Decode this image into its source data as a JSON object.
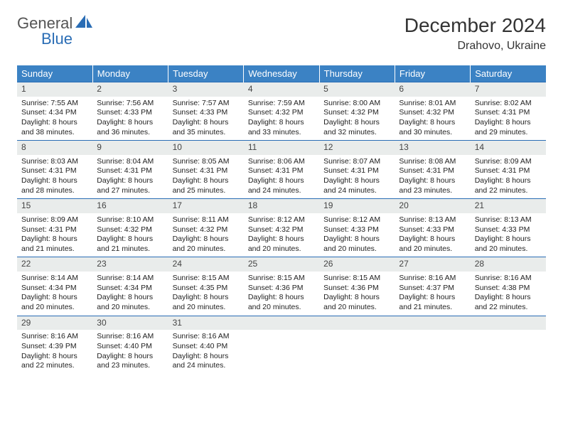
{
  "brand": {
    "general": "General",
    "blue": "Blue"
  },
  "title": "December 2024",
  "location": "Drahovo, Ukraine",
  "colors": {
    "header_bg": "#3b82c4",
    "header_text": "#ffffff",
    "day_num_bg": "#e9eceb",
    "row_border": "#2a6db5",
    "logo_blue": "#2a6db5",
    "logo_gray": "#555555"
  },
  "weekdays": [
    "Sunday",
    "Monday",
    "Tuesday",
    "Wednesday",
    "Thursday",
    "Friday",
    "Saturday"
  ],
  "weeks": [
    [
      {
        "n": "1",
        "sr": "Sunrise: 7:55 AM",
        "ss": "Sunset: 4:34 PM",
        "d1": "Daylight: 8 hours",
        "d2": "and 38 minutes."
      },
      {
        "n": "2",
        "sr": "Sunrise: 7:56 AM",
        "ss": "Sunset: 4:33 PM",
        "d1": "Daylight: 8 hours",
        "d2": "and 36 minutes."
      },
      {
        "n": "3",
        "sr": "Sunrise: 7:57 AM",
        "ss": "Sunset: 4:33 PM",
        "d1": "Daylight: 8 hours",
        "d2": "and 35 minutes."
      },
      {
        "n": "4",
        "sr": "Sunrise: 7:59 AM",
        "ss": "Sunset: 4:32 PM",
        "d1": "Daylight: 8 hours",
        "d2": "and 33 minutes."
      },
      {
        "n": "5",
        "sr": "Sunrise: 8:00 AM",
        "ss": "Sunset: 4:32 PM",
        "d1": "Daylight: 8 hours",
        "d2": "and 32 minutes."
      },
      {
        "n": "6",
        "sr": "Sunrise: 8:01 AM",
        "ss": "Sunset: 4:32 PM",
        "d1": "Daylight: 8 hours",
        "d2": "and 30 minutes."
      },
      {
        "n": "7",
        "sr": "Sunrise: 8:02 AM",
        "ss": "Sunset: 4:31 PM",
        "d1": "Daylight: 8 hours",
        "d2": "and 29 minutes."
      }
    ],
    [
      {
        "n": "8",
        "sr": "Sunrise: 8:03 AM",
        "ss": "Sunset: 4:31 PM",
        "d1": "Daylight: 8 hours",
        "d2": "and 28 minutes."
      },
      {
        "n": "9",
        "sr": "Sunrise: 8:04 AM",
        "ss": "Sunset: 4:31 PM",
        "d1": "Daylight: 8 hours",
        "d2": "and 27 minutes."
      },
      {
        "n": "10",
        "sr": "Sunrise: 8:05 AM",
        "ss": "Sunset: 4:31 PM",
        "d1": "Daylight: 8 hours",
        "d2": "and 25 minutes."
      },
      {
        "n": "11",
        "sr": "Sunrise: 8:06 AM",
        "ss": "Sunset: 4:31 PM",
        "d1": "Daylight: 8 hours",
        "d2": "and 24 minutes."
      },
      {
        "n": "12",
        "sr": "Sunrise: 8:07 AM",
        "ss": "Sunset: 4:31 PM",
        "d1": "Daylight: 8 hours",
        "d2": "and 24 minutes."
      },
      {
        "n": "13",
        "sr": "Sunrise: 8:08 AM",
        "ss": "Sunset: 4:31 PM",
        "d1": "Daylight: 8 hours",
        "d2": "and 23 minutes."
      },
      {
        "n": "14",
        "sr": "Sunrise: 8:09 AM",
        "ss": "Sunset: 4:31 PM",
        "d1": "Daylight: 8 hours",
        "d2": "and 22 minutes."
      }
    ],
    [
      {
        "n": "15",
        "sr": "Sunrise: 8:09 AM",
        "ss": "Sunset: 4:31 PM",
        "d1": "Daylight: 8 hours",
        "d2": "and 21 minutes."
      },
      {
        "n": "16",
        "sr": "Sunrise: 8:10 AM",
        "ss": "Sunset: 4:32 PM",
        "d1": "Daylight: 8 hours",
        "d2": "and 21 minutes."
      },
      {
        "n": "17",
        "sr": "Sunrise: 8:11 AM",
        "ss": "Sunset: 4:32 PM",
        "d1": "Daylight: 8 hours",
        "d2": "and 20 minutes."
      },
      {
        "n": "18",
        "sr": "Sunrise: 8:12 AM",
        "ss": "Sunset: 4:32 PM",
        "d1": "Daylight: 8 hours",
        "d2": "and 20 minutes."
      },
      {
        "n": "19",
        "sr": "Sunrise: 8:12 AM",
        "ss": "Sunset: 4:33 PM",
        "d1": "Daylight: 8 hours",
        "d2": "and 20 minutes."
      },
      {
        "n": "20",
        "sr": "Sunrise: 8:13 AM",
        "ss": "Sunset: 4:33 PM",
        "d1": "Daylight: 8 hours",
        "d2": "and 20 minutes."
      },
      {
        "n": "21",
        "sr": "Sunrise: 8:13 AM",
        "ss": "Sunset: 4:33 PM",
        "d1": "Daylight: 8 hours",
        "d2": "and 20 minutes."
      }
    ],
    [
      {
        "n": "22",
        "sr": "Sunrise: 8:14 AM",
        "ss": "Sunset: 4:34 PM",
        "d1": "Daylight: 8 hours",
        "d2": "and 20 minutes."
      },
      {
        "n": "23",
        "sr": "Sunrise: 8:14 AM",
        "ss": "Sunset: 4:34 PM",
        "d1": "Daylight: 8 hours",
        "d2": "and 20 minutes."
      },
      {
        "n": "24",
        "sr": "Sunrise: 8:15 AM",
        "ss": "Sunset: 4:35 PM",
        "d1": "Daylight: 8 hours",
        "d2": "and 20 minutes."
      },
      {
        "n": "25",
        "sr": "Sunrise: 8:15 AM",
        "ss": "Sunset: 4:36 PM",
        "d1": "Daylight: 8 hours",
        "d2": "and 20 minutes."
      },
      {
        "n": "26",
        "sr": "Sunrise: 8:15 AM",
        "ss": "Sunset: 4:36 PM",
        "d1": "Daylight: 8 hours",
        "d2": "and 20 minutes."
      },
      {
        "n": "27",
        "sr": "Sunrise: 8:16 AM",
        "ss": "Sunset: 4:37 PM",
        "d1": "Daylight: 8 hours",
        "d2": "and 21 minutes."
      },
      {
        "n": "28",
        "sr": "Sunrise: 8:16 AM",
        "ss": "Sunset: 4:38 PM",
        "d1": "Daylight: 8 hours",
        "d2": "and 22 minutes."
      }
    ],
    [
      {
        "n": "29",
        "sr": "Sunrise: 8:16 AM",
        "ss": "Sunset: 4:39 PM",
        "d1": "Daylight: 8 hours",
        "d2": "and 22 minutes."
      },
      {
        "n": "30",
        "sr": "Sunrise: 8:16 AM",
        "ss": "Sunset: 4:40 PM",
        "d1": "Daylight: 8 hours",
        "d2": "and 23 minutes."
      },
      {
        "n": "31",
        "sr": "Sunrise: 8:16 AM",
        "ss": "Sunset: 4:40 PM",
        "d1": "Daylight: 8 hours",
        "d2": "and 24 minutes."
      },
      {
        "n": "",
        "sr": "",
        "ss": "",
        "d1": "",
        "d2": ""
      },
      {
        "n": "",
        "sr": "",
        "ss": "",
        "d1": "",
        "d2": ""
      },
      {
        "n": "",
        "sr": "",
        "ss": "",
        "d1": "",
        "d2": ""
      },
      {
        "n": "",
        "sr": "",
        "ss": "",
        "d1": "",
        "d2": ""
      }
    ]
  ]
}
